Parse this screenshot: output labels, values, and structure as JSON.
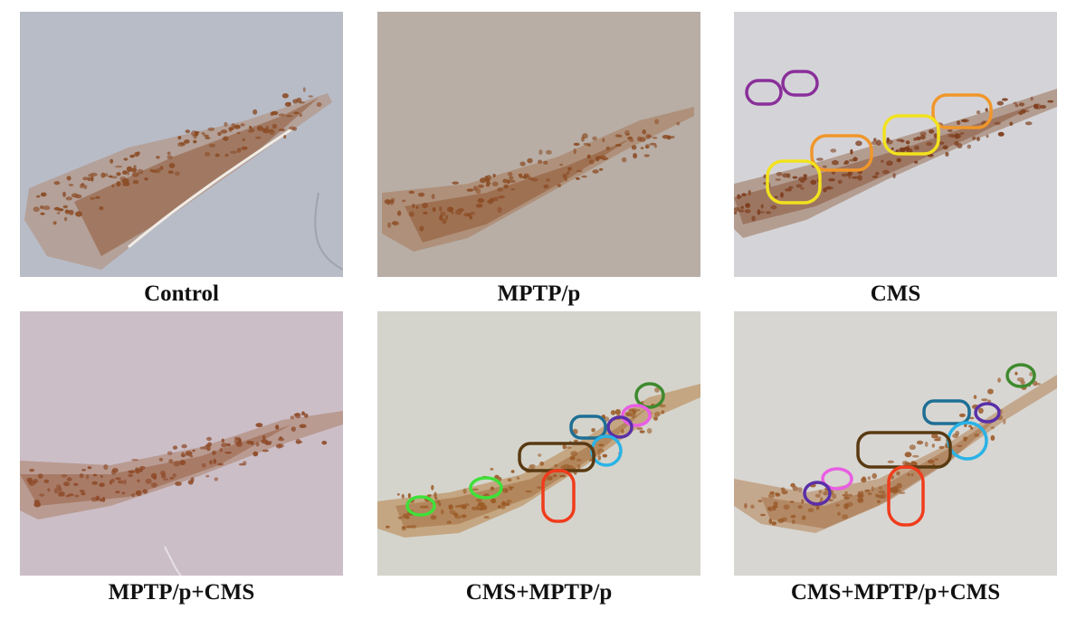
{
  "figure": {
    "panels": [
      {
        "id": "control",
        "label": "Control",
        "tissue_color": "#b9bdc8",
        "stain_color": "#8a4a22",
        "markers": []
      },
      {
        "id": "mptp-p",
        "label": "MPTP/p",
        "tissue_color": "#b8aea6",
        "stain_color": "#8c4c24",
        "markers": []
      },
      {
        "id": "cms",
        "label": "CMS",
        "tissue_color": "#d4d4d8",
        "stain_color": "#7e3d1c",
        "markers": [
          "purple",
          "purple",
          "yellow",
          "yellow",
          "orange",
          "orange"
        ]
      },
      {
        "id": "mptp-p-cms",
        "label": "MPTP/p+CMS",
        "tissue_color": "#cbbec7",
        "stain_color": "#8e4a28",
        "markers": []
      },
      {
        "id": "cms-mptp-p",
        "label": "CMS+MPTP/p",
        "tissue_color": "#d4d4cc",
        "stain_color": "#9a5a26",
        "markers": [
          "dark-green",
          "magenta",
          "purple",
          "teal",
          "cyan",
          "brown",
          "red",
          "green",
          "green"
        ]
      },
      {
        "id": "cms-mptp-p-cms",
        "label": "CMS+MPTP/p+CMS",
        "tissue_color": "#d8d6d2",
        "stain_color": "#9a5a2a",
        "markers": [
          "dark-green",
          "purple",
          "teal",
          "cyan",
          "brown",
          "red",
          "magenta",
          "purple"
        ]
      }
    ],
    "marker_colors": {
      "purple": "#8a2f9a",
      "yellow": "#f2e21e",
      "orange": "#f0962a",
      "dark-green": "#3e8a2e",
      "magenta": "#e95ee4",
      "indigo": "#5a2fa8",
      "teal": "#1f6f95",
      "cyan": "#2ab3e6",
      "brown": "#5a3a12",
      "red": "#f03c1c",
      "green": "#3fe038"
    }
  }
}
